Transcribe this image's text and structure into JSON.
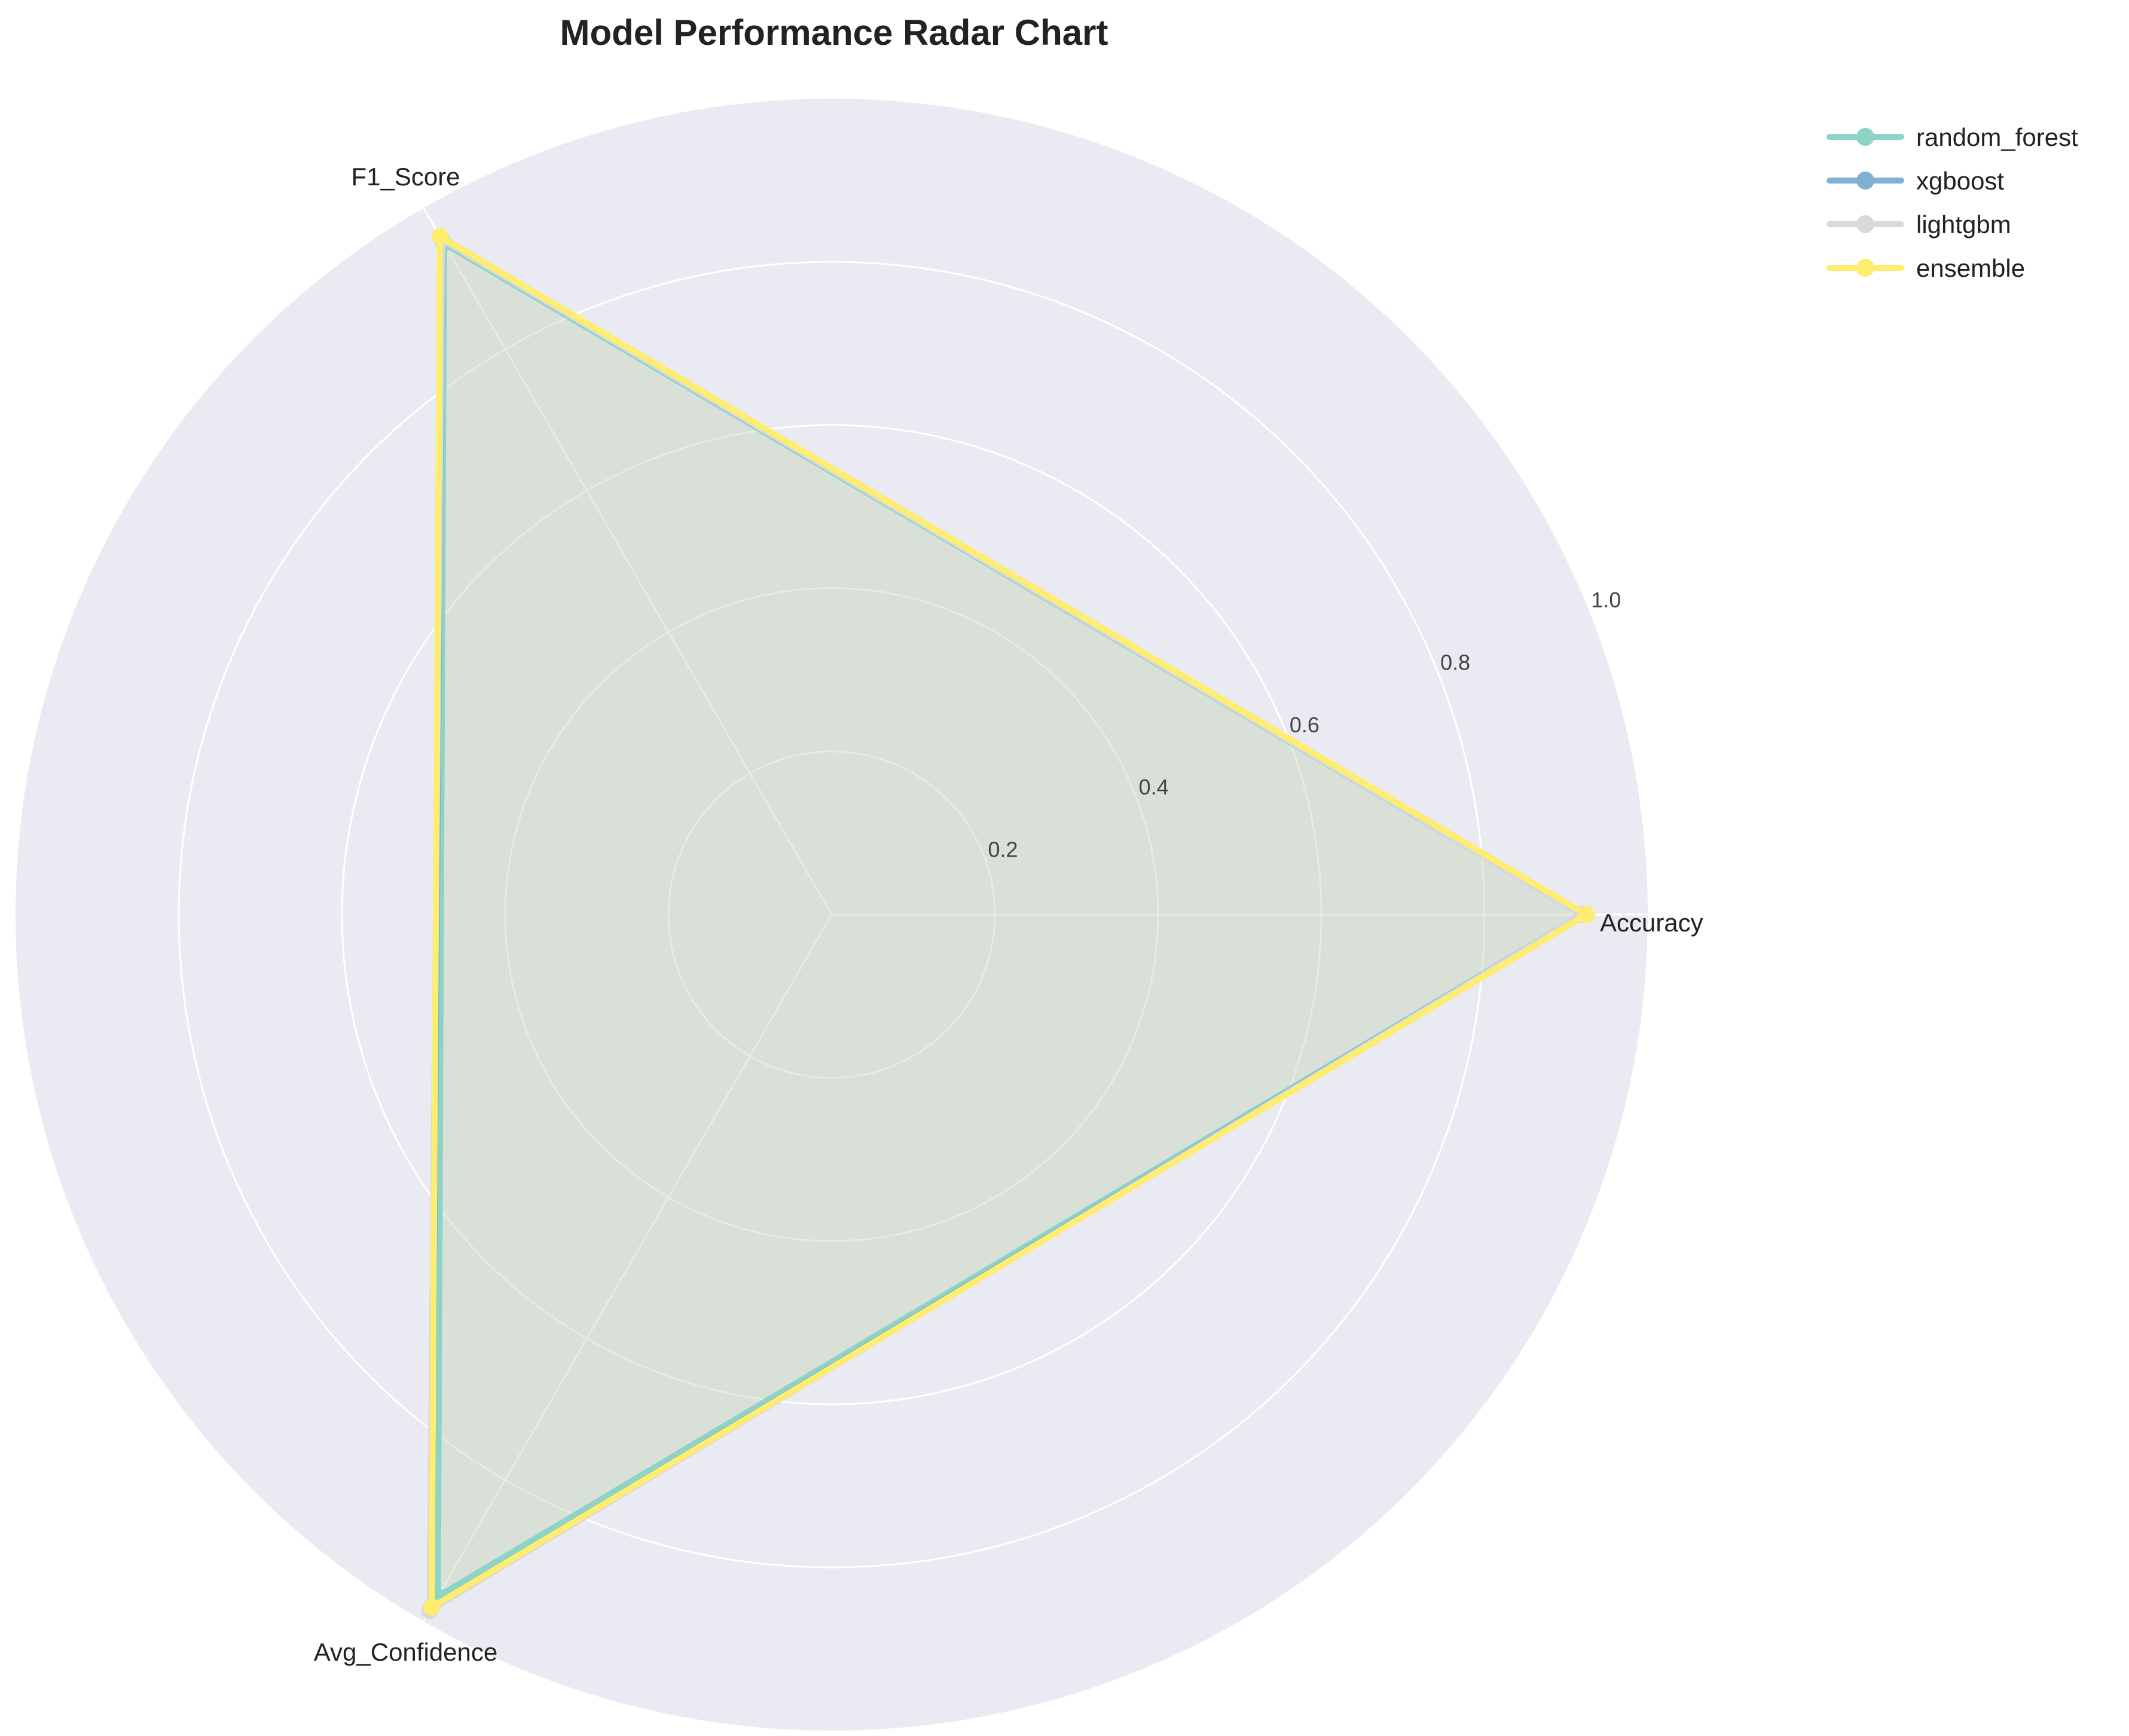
{
  "chart_data": {
    "type": "radar",
    "title": "Model Performance Radar Chart",
    "axes": [
      "Accuracy",
      "F1_Score",
      "Avg_Confidence"
    ],
    "rlim": [
      0,
      1.0
    ],
    "rticks": [
      0.2,
      0.4,
      0.6,
      0.8,
      1.0
    ],
    "rtick_labels": [
      "0.2",
      "0.4",
      "0.6",
      "0.8",
      "1.0"
    ],
    "grid": true,
    "legend_position": "top-right, outside plot",
    "series": [
      {
        "name": "random_forest",
        "values": [
          0.92,
          0.95,
          0.965
        ],
        "color": "#8dd3c7"
      },
      {
        "name": "xgboost",
        "values": [
          0.92,
          0.955,
          0.98
        ],
        "color": "#80b1d3"
      },
      {
        "name": "lightgbm",
        "values": [
          0.92,
          0.955,
          0.985
        ],
        "color": "#d9d9d9"
      },
      {
        "name": "ensemble",
        "values": [
          0.925,
          0.96,
          0.98
        ],
        "color": "#ffed6f"
      }
    ],
    "colors": {
      "plot_background": "#eaeaf2",
      "grid": "#ffffff"
    }
  }
}
